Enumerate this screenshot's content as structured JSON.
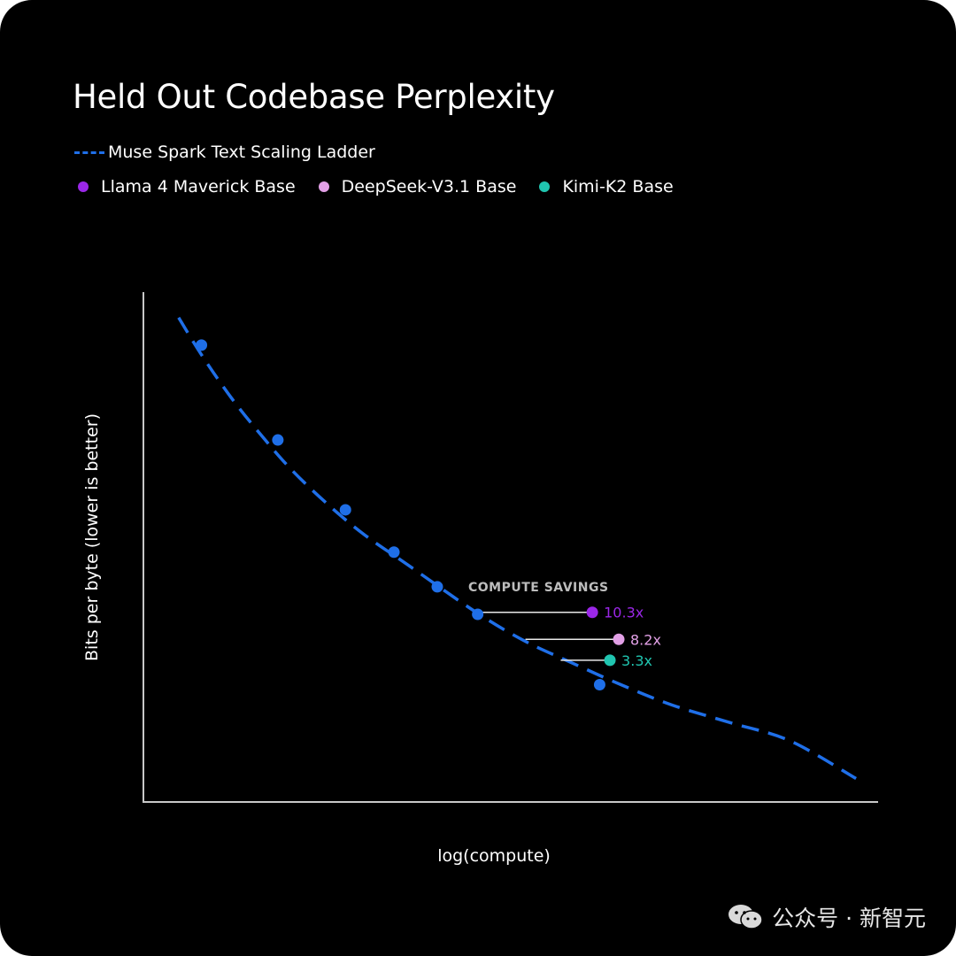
{
  "watermark": {
    "text": "公众号 · 新智元",
    "icon": "wechat-icon"
  },
  "chart_data": {
    "type": "scatter",
    "title": "Held Out Codebase Perplexity",
    "xlabel": "log(compute)",
    "ylabel": "Bits per byte (lower is better)",
    "xlim": [
      0,
      100
    ],
    "ylim": [
      0,
      100
    ],
    "grid": false,
    "legend_position": "top-left",
    "legend": [
      {
        "name": "Muse Spark Text Scaling Ladder",
        "marker": "dashed-line",
        "color": "#1f6fe8"
      },
      {
        "name": "Llama 4 Maverick Base",
        "marker": "dot",
        "color": "#9b27e8"
      },
      {
        "name": "DeepSeek-V3.1 Base",
        "marker": "dot",
        "color": "#e2a0e6"
      },
      {
        "name": "Kimi-K2 Base",
        "marker": "dot",
        "color": "#20c5b0"
      }
    ],
    "scaling_curve": {
      "name": "Muse Spark Text Scaling Ladder",
      "color": "#1f6fe8",
      "x": [
        4.8,
        8.0,
        12.0,
        16.0,
        20.0,
        25.0,
        30.0,
        36.0,
        45.5,
        52.0,
        58.0,
        65.0,
        72.0,
        80.0,
        88.0,
        97.0
      ],
      "y": [
        95.0,
        87.5,
        79.2,
        72.0,
        65.4,
        58.5,
        52.5,
        46.5,
        37.0,
        31.5,
        27.5,
        23.0,
        19.0,
        15.5,
        12.0,
        4.6
      ],
      "points": {
        "x": [
          7.9,
          18.3,
          27.5,
          34.1,
          40.0,
          45.5,
          62.1
        ],
        "y": [
          89.6,
          71.0,
          57.3,
          49.0,
          42.2,
          36.8,
          23.0
        ]
      }
    },
    "annotation": "COMPUTE SAVINGS",
    "savings": [
      {
        "model": "Llama 4 Maverick Base",
        "label": "10.3x",
        "color": "#9b27e8",
        "x_from": 45.5,
        "x_to": 61.1,
        "y": 37.2
      },
      {
        "model": "DeepSeek-V3.1 Base",
        "label": "8.2x",
        "color": "#e2a0e6",
        "x_from": 52.0,
        "x_to": 64.7,
        "y": 31.9
      },
      {
        "model": "Kimi-K2 Base",
        "label": "3.3x",
        "color": "#20c5b0",
        "x_from": 56.8,
        "x_to": 63.5,
        "y": 27.8
      }
    ]
  }
}
